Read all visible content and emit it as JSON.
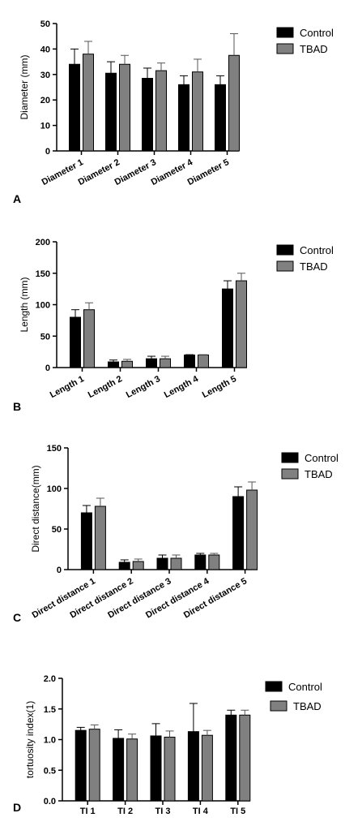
{
  "colors": {
    "control": "#000000",
    "tbad": "#808080",
    "axis": "#000000"
  },
  "chart_data": [
    {
      "panel": "A",
      "type": "bar",
      "ylabel": "Diameter (mm)",
      "ylim": [
        0,
        50
      ],
      "yticks": [
        0,
        10,
        20,
        30,
        40,
        50
      ],
      "categories": [
        "Diameter 1",
        "Diameter 2",
        "Diameter 3",
        "Diameter 4",
        "Diameter 5"
      ],
      "series": [
        {
          "name": "Control",
          "values": [
            34,
            30.5,
            28.5,
            26,
            26
          ],
          "errors": [
            6,
            4.5,
            4,
            3.5,
            3.5
          ]
        },
        {
          "name": "TBAD",
          "values": [
            38,
            34,
            31.5,
            31,
            37.5
          ],
          "errors": [
            5,
            3.5,
            3,
            5,
            8.5
          ]
        }
      ],
      "legend": "top-right",
      "grid": false
    },
    {
      "panel": "B",
      "type": "bar",
      "ylabel": "Length (mm)",
      "ylim": [
        0,
        200
      ],
      "yticks": [
        0,
        50,
        100,
        150,
        200
      ],
      "categories": [
        "Length 1",
        "Length 2",
        "Length 3",
        "Length 4",
        "Length 5"
      ],
      "series": [
        {
          "name": "Control",
          "values": [
            80,
            9,
            14,
            20,
            125
          ],
          "errors": [
            12,
            3,
            4,
            0.5,
            13
          ]
        },
        {
          "name": "TBAD",
          "values": [
            92,
            10,
            14,
            20,
            138
          ],
          "errors": [
            11,
            3,
            4,
            0.5,
            12
          ]
        }
      ],
      "legend": "top-right",
      "grid": false
    },
    {
      "panel": "C",
      "type": "bar",
      "ylabel": "Direct distance(mm)",
      "ylim": [
        0,
        150
      ],
      "yticks": [
        0,
        50,
        100,
        150
      ],
      "categories": [
        "Direct distance 1",
        "Direct distance 2",
        "Direct distance 3",
        "Direct distance 4",
        "Direct distance 5"
      ],
      "series": [
        {
          "name": "Control",
          "values": [
            70,
            9,
            14,
            18,
            90
          ],
          "errors": [
            9,
            3,
            4,
            2,
            12
          ]
        },
        {
          "name": "TBAD",
          "values": [
            78,
            10,
            14,
            18,
            98
          ],
          "errors": [
            10,
            3,
            4,
            2,
            10
          ]
        }
      ],
      "legend": "top-right",
      "grid": false
    },
    {
      "panel": "D",
      "type": "bar",
      "ylabel": "tortuosity index(1)",
      "ylim": [
        0,
        2.0
      ],
      "yticks": [
        "0.0",
        "0.5",
        "1.0",
        "1.5",
        "2.0"
      ],
      "categories": [
        "TI 1",
        "TI 2",
        "TI 3",
        "TI 4",
        "TI 5"
      ],
      "series": [
        {
          "name": "Control",
          "values": [
            1.15,
            1.02,
            1.06,
            1.13,
            1.4
          ],
          "errors": [
            0.05,
            0.14,
            0.2,
            0.46,
            0.08
          ]
        },
        {
          "name": "TBAD",
          "values": [
            1.17,
            1.01,
            1.04,
            1.07,
            1.4
          ],
          "errors": [
            0.07,
            0.08,
            0.1,
            0.08,
            0.08
          ]
        }
      ],
      "legend": "top-right",
      "grid": false
    }
  ]
}
